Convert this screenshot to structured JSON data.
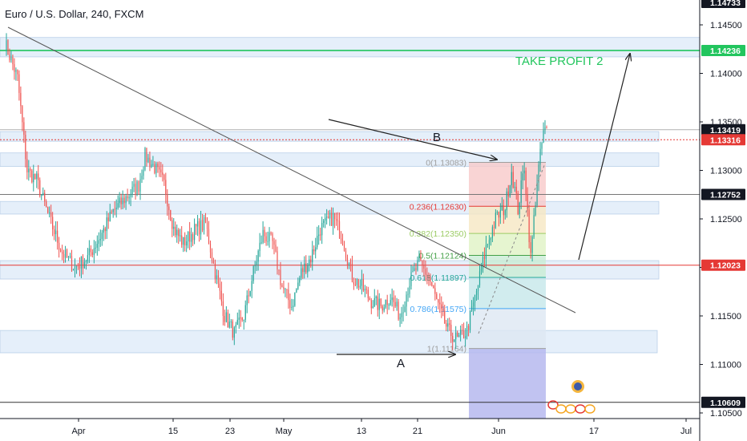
{
  "header": {
    "title": "Euro / U.S. Dollar, 240, FXCM"
  },
  "colors": {
    "up": "#26a69a",
    "down": "#ef5350",
    "zone": "#dce9f8",
    "zone_border": "#b9cfe8",
    "tp_green": "#22c55e",
    "red_line": "#e53935",
    "gray_line": "#777777",
    "axis": "#131722"
  },
  "chart_data": {
    "type": "candlestick",
    "symbol": "EURUSD",
    "timeframe": "240",
    "ylim": [
      1.1042,
      1.1478
    ],
    "y_ticks": [
      {
        "value": 1.145,
        "label": "1.14500"
      },
      {
        "value": 1.14,
        "label": "1.14000"
      },
      {
        "value": 1.135,
        "label": "1.13500"
      },
      {
        "value": 1.13,
        "label": "1.13000"
      },
      {
        "value": 1.125,
        "label": "1.12500"
      },
      {
        "value": 1.12,
        "label": "1.12000"
      },
      {
        "value": 1.115,
        "label": "1.11500"
      },
      {
        "value": 1.11,
        "label": "1.11000"
      },
      {
        "value": 1.105,
        "label": "1.10500"
      }
    ],
    "x_ticks": [
      "Apr",
      "15",
      "23",
      "May",
      "13",
      "21",
      "Jun",
      "17",
      "Jul"
    ],
    "price_tags": [
      {
        "value": 1.14733,
        "label": "1.14733",
        "style": "dark"
      },
      {
        "value": 1.14236,
        "label": "1.14236",
        "style": "green"
      },
      {
        "value": 1.13419,
        "label": "1.13419",
        "style": "dark"
      },
      {
        "value": 1.13316,
        "label": "1.13316",
        "style": "red"
      },
      {
        "value": 1.12752,
        "label": "1.12752",
        "style": "dark"
      },
      {
        "value": 1.12023,
        "label": "1.12023",
        "style": "red"
      },
      {
        "value": 1.10609,
        "label": "1.10609",
        "style": "dark"
      }
    ],
    "zones": [
      {
        "top": 1.1437,
        "bottom": 1.1417
      },
      {
        "top": 1.134,
        "bottom": 1.133
      },
      {
        "top": 1.1318,
        "bottom": 1.1304
      },
      {
        "top": 1.1268,
        "bottom": 1.1255
      },
      {
        "top": 1.1207,
        "bottom": 1.1188
      },
      {
        "top": 1.1135,
        "bottom": 1.1112
      }
    ],
    "fib_levels": [
      {
        "ratio": "0",
        "value": 1.13083,
        "label": "0(1.13083)",
        "color": "#9e9e9e"
      },
      {
        "ratio": "0.236",
        "value": 1.1263,
        "label": "0.236(1.12630)",
        "color": "#e53935"
      },
      {
        "ratio": "0.382",
        "value": 1.1235,
        "label": "0.382(1.12350)",
        "color": "#9ccc65"
      },
      {
        "ratio": "0.5",
        "value": 1.12124,
        "label": "0.5(1.12124)",
        "color": "#43a047"
      },
      {
        "ratio": "0.618",
        "value": 1.11897,
        "label": "0.618(1.11897)",
        "color": "#26a69a"
      },
      {
        "ratio": "0.786",
        "value": 1.11575,
        "label": "0.786(1.11575)",
        "color": "#42a5f5"
      },
      {
        "ratio": "1",
        "value": 1.11164,
        "label": "1(1.11164)",
        "color": "#9e9e9e"
      }
    ],
    "annotations": [
      {
        "text": "TAKE PROFIT 2",
        "color": "#22c55e"
      },
      {
        "text": "B",
        "color": "#131722"
      },
      {
        "text": "A",
        "color": "#131722"
      }
    ],
    "anchors": [
      [
        0,
        1.1432
      ],
      [
        8,
        1.1395
      ],
      [
        14,
        1.13
      ],
      [
        20,
        1.129
      ],
      [
        28,
        1.125
      ],
      [
        36,
        1.1215
      ],
      [
        44,
        1.12
      ],
      [
        52,
        1.121
      ],
      [
        60,
        1.1232
      ],
      [
        68,
        1.1258
      ],
      [
        76,
        1.1272
      ],
      [
        84,
        1.1285
      ],
      [
        88,
        1.1315
      ],
      [
        94,
        1.1303
      ],
      [
        100,
        1.1286
      ],
      [
        106,
        1.124
      ],
      [
        112,
        1.1225
      ],
      [
        120,
        1.124
      ],
      [
        126,
        1.1245
      ],
      [
        132,
        1.1195
      ],
      [
        138,
        1.115
      ],
      [
        144,
        1.1132
      ],
      [
        150,
        1.115
      ],
      [
        156,
        1.1195
      ],
      [
        162,
        1.1235
      ],
      [
        168,
        1.1225
      ],
      [
        174,
        1.118
      ],
      [
        180,
        1.116
      ],
      [
        186,
        1.1195
      ],
      [
        192,
        1.121
      ],
      [
        198,
        1.124
      ],
      [
        206,
        1.1252
      ],
      [
        212,
        1.123
      ],
      [
        218,
        1.119
      ],
      [
        224,
        1.118
      ],
      [
        230,
        1.1165
      ],
      [
        236,
        1.116
      ],
      [
        242,
        1.117
      ],
      [
        248,
        1.115
      ],
      [
        254,
        1.1185
      ],
      [
        260,
        1.1205
      ],
      [
        266,
        1.119
      ],
      [
        272,
        1.116
      ],
      [
        278,
        1.1135
      ],
      [
        284,
        1.1125
      ],
      [
        290,
        1.1135
      ],
      [
        296,
        1.1175
      ],
      [
        302,
        1.122
      ],
      [
        308,
        1.125
      ],
      [
        314,
        1.1262
      ],
      [
        318,
        1.13
      ],
      [
        322,
        1.126
      ],
      [
        326,
        1.1305
      ],
      [
        330,
        1.121
      ],
      [
        334,
        1.129
      ],
      [
        338,
        1.134
      ]
    ]
  }
}
